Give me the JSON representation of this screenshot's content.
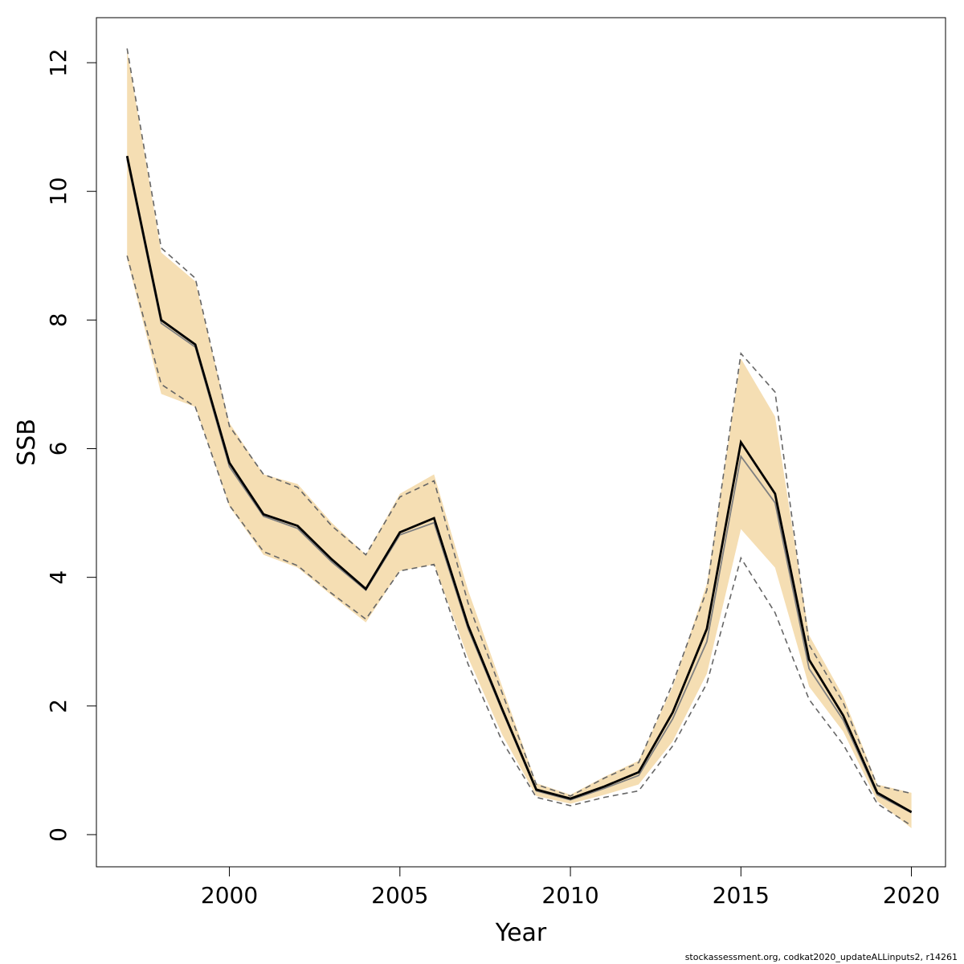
{
  "chart_data": {
    "type": "line",
    "xlabel": "Year",
    "ylabel": "SSB",
    "xlim": [
      1996.1,
      2021.0
    ],
    "ylim": [
      -0.5,
      12.7
    ],
    "x_ticks": [
      2000,
      2005,
      2010,
      2015,
      2020
    ],
    "y_ticks": [
      0,
      2,
      4,
      6,
      8,
      10,
      12
    ],
    "grid": false,
    "colors": {
      "band": "#f5deb3",
      "main": "#000000",
      "secondary": "#808080",
      "dashed": "#666666",
      "axis": "#000000"
    },
    "years": [
      1997,
      1998,
      1999,
      2000,
      2001,
      2002,
      2003,
      2004,
      2005,
      2006,
      2007,
      2008,
      2009,
      2010,
      2011,
      2012,
      2013,
      2014,
      2015,
      2016,
      2017,
      2018,
      2019,
      2020
    ],
    "series": [
      {
        "role": "estimate",
        "values": [
          10.55,
          8.0,
          7.62,
          5.78,
          4.98,
          4.8,
          4.28,
          3.82,
          4.7,
          4.92,
          3.25,
          1.95,
          0.7,
          0.56,
          0.75,
          0.97,
          1.9,
          3.2,
          6.1,
          5.3,
          2.72,
          1.85,
          0.65,
          0.35
        ]
      },
      {
        "role": "estimate-alt",
        "values": [
          10.5,
          7.95,
          7.58,
          5.72,
          4.95,
          4.76,
          4.24,
          3.8,
          4.66,
          4.85,
          3.2,
          1.92,
          0.68,
          0.54,
          0.72,
          0.92,
          1.8,
          3.0,
          5.88,
          5.16,
          2.58,
          1.78,
          0.62,
          0.34
        ]
      },
      {
        "role": "band-upper",
        "values": [
          12.2,
          9.05,
          8.6,
          6.4,
          5.6,
          5.45,
          4.85,
          4.35,
          5.3,
          5.6,
          3.8,
          2.3,
          0.8,
          0.62,
          0.9,
          1.15,
          2.3,
          3.9,
          7.4,
          6.5,
          3.1,
          2.15,
          0.78,
          0.65
        ]
      },
      {
        "role": "band-lower",
        "values": [
          8.95,
          6.85,
          6.65,
          5.1,
          4.35,
          4.15,
          3.72,
          3.3,
          4.1,
          4.2,
          2.75,
          1.55,
          0.6,
          0.48,
          0.62,
          0.78,
          1.45,
          2.5,
          4.75,
          4.15,
          2.3,
          1.6,
          0.52,
          0.1
        ]
      },
      {
        "role": "dashed-upper",
        "values": [
          12.22,
          9.12,
          8.65,
          6.35,
          5.6,
          5.4,
          4.8,
          4.35,
          5.25,
          5.5,
          3.6,
          2.2,
          0.78,
          0.6,
          0.88,
          1.12,
          2.35,
          3.8,
          7.48,
          6.88,
          2.95,
          2.05,
          0.76,
          0.64
        ]
      },
      {
        "role": "dashed-lower",
        "values": [
          9.0,
          7.0,
          6.65,
          5.12,
          4.4,
          4.18,
          3.75,
          3.35,
          4.1,
          4.2,
          2.65,
          1.45,
          0.58,
          0.45,
          0.58,
          0.68,
          1.38,
          2.35,
          4.3,
          3.45,
          2.1,
          1.4,
          0.48,
          0.14
        ]
      }
    ]
  },
  "footnote": "stockassessment.org, codkat2020_updateALLinputs2, r14261"
}
